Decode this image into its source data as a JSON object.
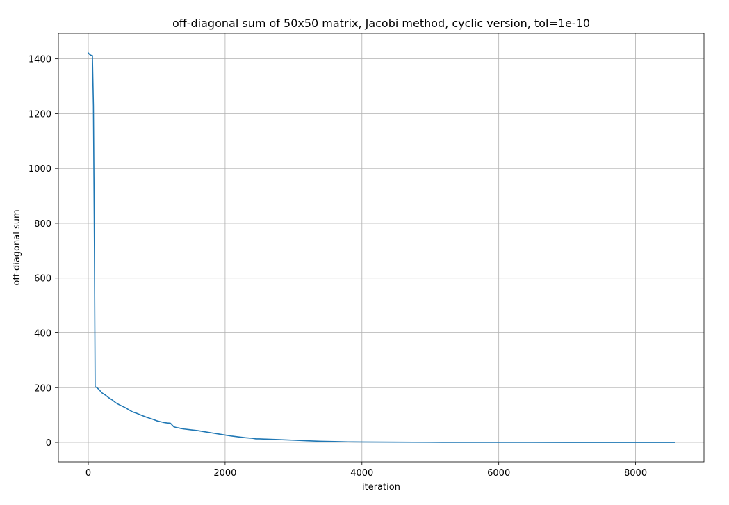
{
  "chart_data": {
    "type": "line",
    "title": "off-diagonal sum of 50x50 matrix, Jacobi method, cyclic version, tol=1e-10",
    "xlabel": "iteration",
    "ylabel": "off-diagonal sum",
    "xlim": [
      -437,
      9000
    ],
    "ylim": [
      -71,
      1493
    ],
    "grid": true,
    "x_ticks": [
      0,
      2000,
      4000,
      6000,
      8000
    ],
    "x_tick_labels": [
      "0",
      "2000",
      "4000",
      "6000",
      "8000"
    ],
    "y_ticks": [
      0,
      200,
      400,
      600,
      800,
      1000,
      1200,
      1400
    ],
    "y_tick_labels": [
      "0",
      "200",
      "400",
      "600",
      "800",
      "1000",
      "1200",
      "1400"
    ],
    "series": [
      {
        "color": "#1f77b4",
        "x": [
          0,
          20,
          40,
          60,
          75,
          90,
          100,
          110,
          125,
          150,
          200,
          250,
          300,
          350,
          400,
          450,
          500,
          550,
          600,
          650,
          700,
          750,
          800,
          850,
          900,
          950,
          1000,
          1050,
          1100,
          1150,
          1200,
          1250,
          1290,
          1320,
          1350,
          1400,
          1500,
          1600,
          1700,
          1800,
          1900,
          2000,
          2100,
          2200,
          2300,
          2400,
          2450,
          2500,
          2600,
          2700,
          2800,
          3000,
          3200,
          3400,
          3600,
          3800,
          4000,
          4500,
          5000,
          5500,
          6000,
          7000,
          8000,
          8575
        ],
        "y": [
          1422,
          1416,
          1413,
          1412,
          1230,
          700,
          203,
          202,
          200,
          195,
          181,
          173,
          163,
          155,
          145,
          138,
          132,
          126,
          118,
          111,
          107,
          102,
          97,
          92,
          88,
          84,
          79,
          76,
          73,
          71,
          70,
          57,
          54,
          53,
          51,
          49,
          46,
          43,
          39,
          35,
          31,
          27,
          23,
          20,
          17,
          15,
          13,
          13,
          12,
          11,
          10,
          8,
          6,
          4,
          3,
          2,
          1.5,
          0.8,
          0.4,
          0.2,
          0.1,
          0.05,
          0.02,
          0
        ]
      }
    ]
  }
}
